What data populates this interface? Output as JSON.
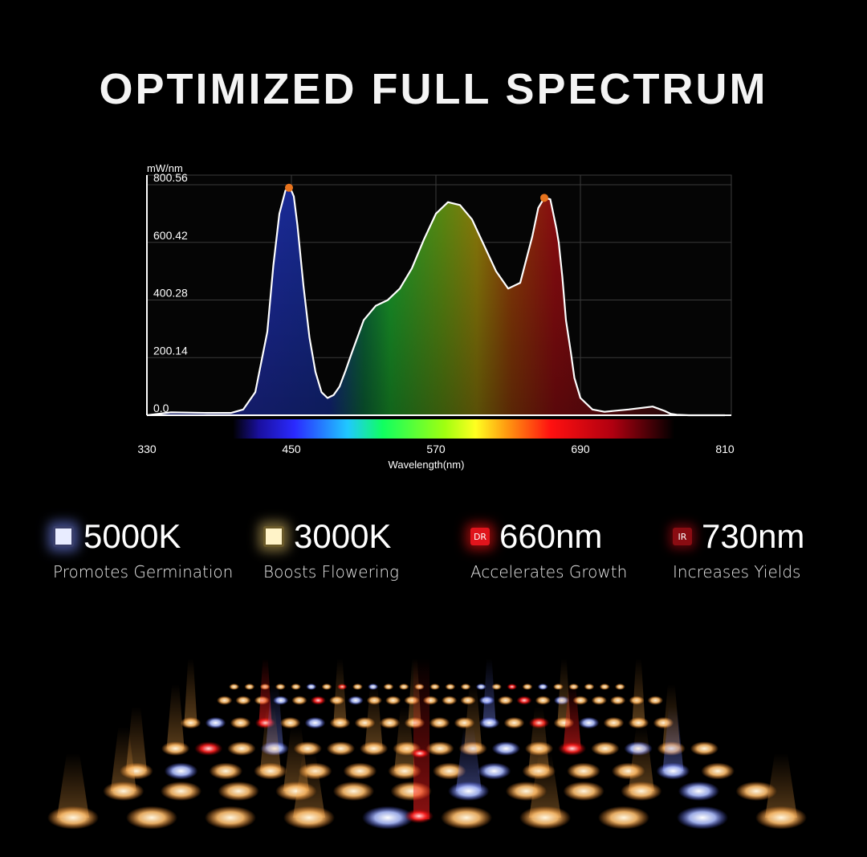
{
  "title": "OPTIMIZED FULL SPECTRUM",
  "chart_data": {
    "type": "area",
    "title": "",
    "ylabel": "mW/nm",
    "xlabel": "Wavelength(nm)",
    "xlim": [
      330,
      810
    ],
    "ylim": [
      0,
      800.56
    ],
    "x_ticks": [
      "330",
      "450",
      "570",
      "690",
      "810"
    ],
    "y_ticks": [
      "0.0",
      "200.14",
      "400.28",
      "600.42",
      "800.56"
    ],
    "grid": true,
    "series": [
      {
        "x": [
          330,
          350,
          380,
          400,
          410,
          420,
          430,
          435,
          440,
          445,
          448,
          450,
          452,
          455,
          460,
          465,
          470,
          475,
          480,
          485,
          490,
          495,
          500,
          510,
          520,
          530,
          540,
          550,
          560,
          570,
          580,
          590,
          600,
          610,
          620,
          630,
          640,
          650,
          655,
          660,
          665,
          670,
          672,
          675,
          678,
          682,
          685,
          690,
          700,
          710,
          730,
          750,
          760,
          765,
          770,
          780,
          810
        ],
        "y": [
          0,
          10,
          8,
          8,
          20,
          80,
          290,
          520,
          700,
          780,
          790,
          780,
          760,
          660,
          450,
          270,
          150,
          80,
          60,
          70,
          100,
          155,
          215,
          330,
          380,
          400,
          440,
          510,
          610,
          700,
          740,
          730,
          680,
          590,
          500,
          440,
          460,
          620,
          720,
          755,
          750,
          650,
          600,
          480,
          330,
          220,
          130,
          60,
          20,
          12,
          20,
          30,
          15,
          5,
          2,
          0,
          0
        ]
      }
    ],
    "peaks": [
      {
        "x": 448,
        "y": 790
      },
      {
        "x": 660,
        "y": 755
      }
    ]
  },
  "features": [
    {
      "icon": "white-led-icon",
      "value": "5000K",
      "label": "Promotes Germination"
    },
    {
      "icon": "warm-led-icon",
      "value": "3000K",
      "label": "Boosts Flowering"
    },
    {
      "icon": "deep-red-led-icon",
      "badge": "DR",
      "value": "660nm",
      "label": "Accelerates Growth"
    },
    {
      "icon": "infrared-led-icon",
      "badge": "IR",
      "value": "730nm",
      "label": "Increases Yields"
    }
  ],
  "colors": {
    "background": "#000000",
    "curve": "#ffffff",
    "peak_marker": "#e8741e",
    "grid": "#3a3a3a"
  }
}
